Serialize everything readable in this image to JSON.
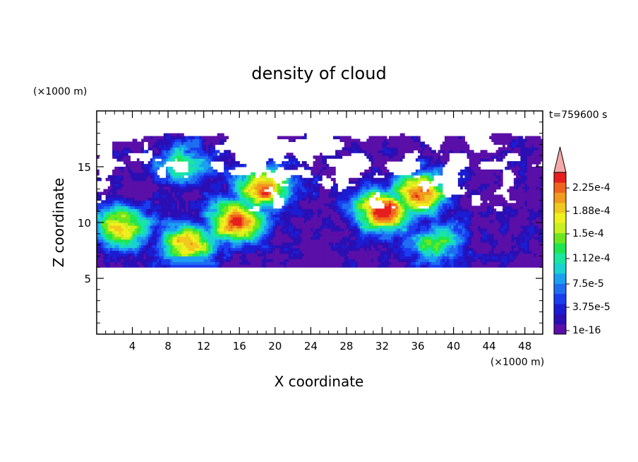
{
  "chart_data": {
    "type": "heatmap",
    "title": "density of cloud",
    "time_label": "t=759600 s",
    "xlabel": "X coordinate",
    "ylabel": "Z coordinate",
    "x_unit": "(×1000 m)",
    "y_unit": "(×1000 m)",
    "xlim": [
      0,
      50
    ],
    "ylim": [
      0,
      20
    ],
    "x_ticks": [
      4,
      8,
      12,
      16,
      20,
      24,
      28,
      32,
      36,
      40,
      44,
      48
    ],
    "y_ticks": [
      5,
      10,
      15
    ],
    "colorbar": {
      "levels_labeled": [
        "2.25e-4",
        "1.88e-4",
        "1.5e-4",
        "1.12e-4",
        "7.5e-5",
        "3.75e-5",
        "1e-16"
      ],
      "colors": [
        "#5a0fa8",
        "#2a0fb4",
        "#1c1cd2",
        "#1a3df0",
        "#1f6ef2",
        "#1aa0f0",
        "#1ad2d2",
        "#1ae6a0",
        "#1ee650",
        "#6ee61e",
        "#c8f01e",
        "#f0f01e",
        "#f0c81e",
        "#f09a1e",
        "#f0641e",
        "#e61e1e"
      ],
      "overflow_color": "#f5a8a8"
    },
    "cloud_layer": {
      "x_range": [
        0,
        50
      ],
      "z_range": [
        6,
        18
      ],
      "cores": [
        {
          "x": 2.5,
          "z": 9.5,
          "level": 12
        },
        {
          "x": 9.7,
          "z": 15.0,
          "level": 8
        },
        {
          "x": 10.0,
          "z": 8.0,
          "level": 13
        },
        {
          "x": 15.5,
          "z": 10.0,
          "level": 15
        },
        {
          "x": 18.5,
          "z": 13.0,
          "level": 14
        },
        {
          "x": 32.0,
          "z": 11.0,
          "level": 15
        },
        {
          "x": 36.0,
          "z": 12.5,
          "level": 14
        },
        {
          "x": 38.0,
          "z": 8.0,
          "level": 8
        }
      ]
    }
  }
}
